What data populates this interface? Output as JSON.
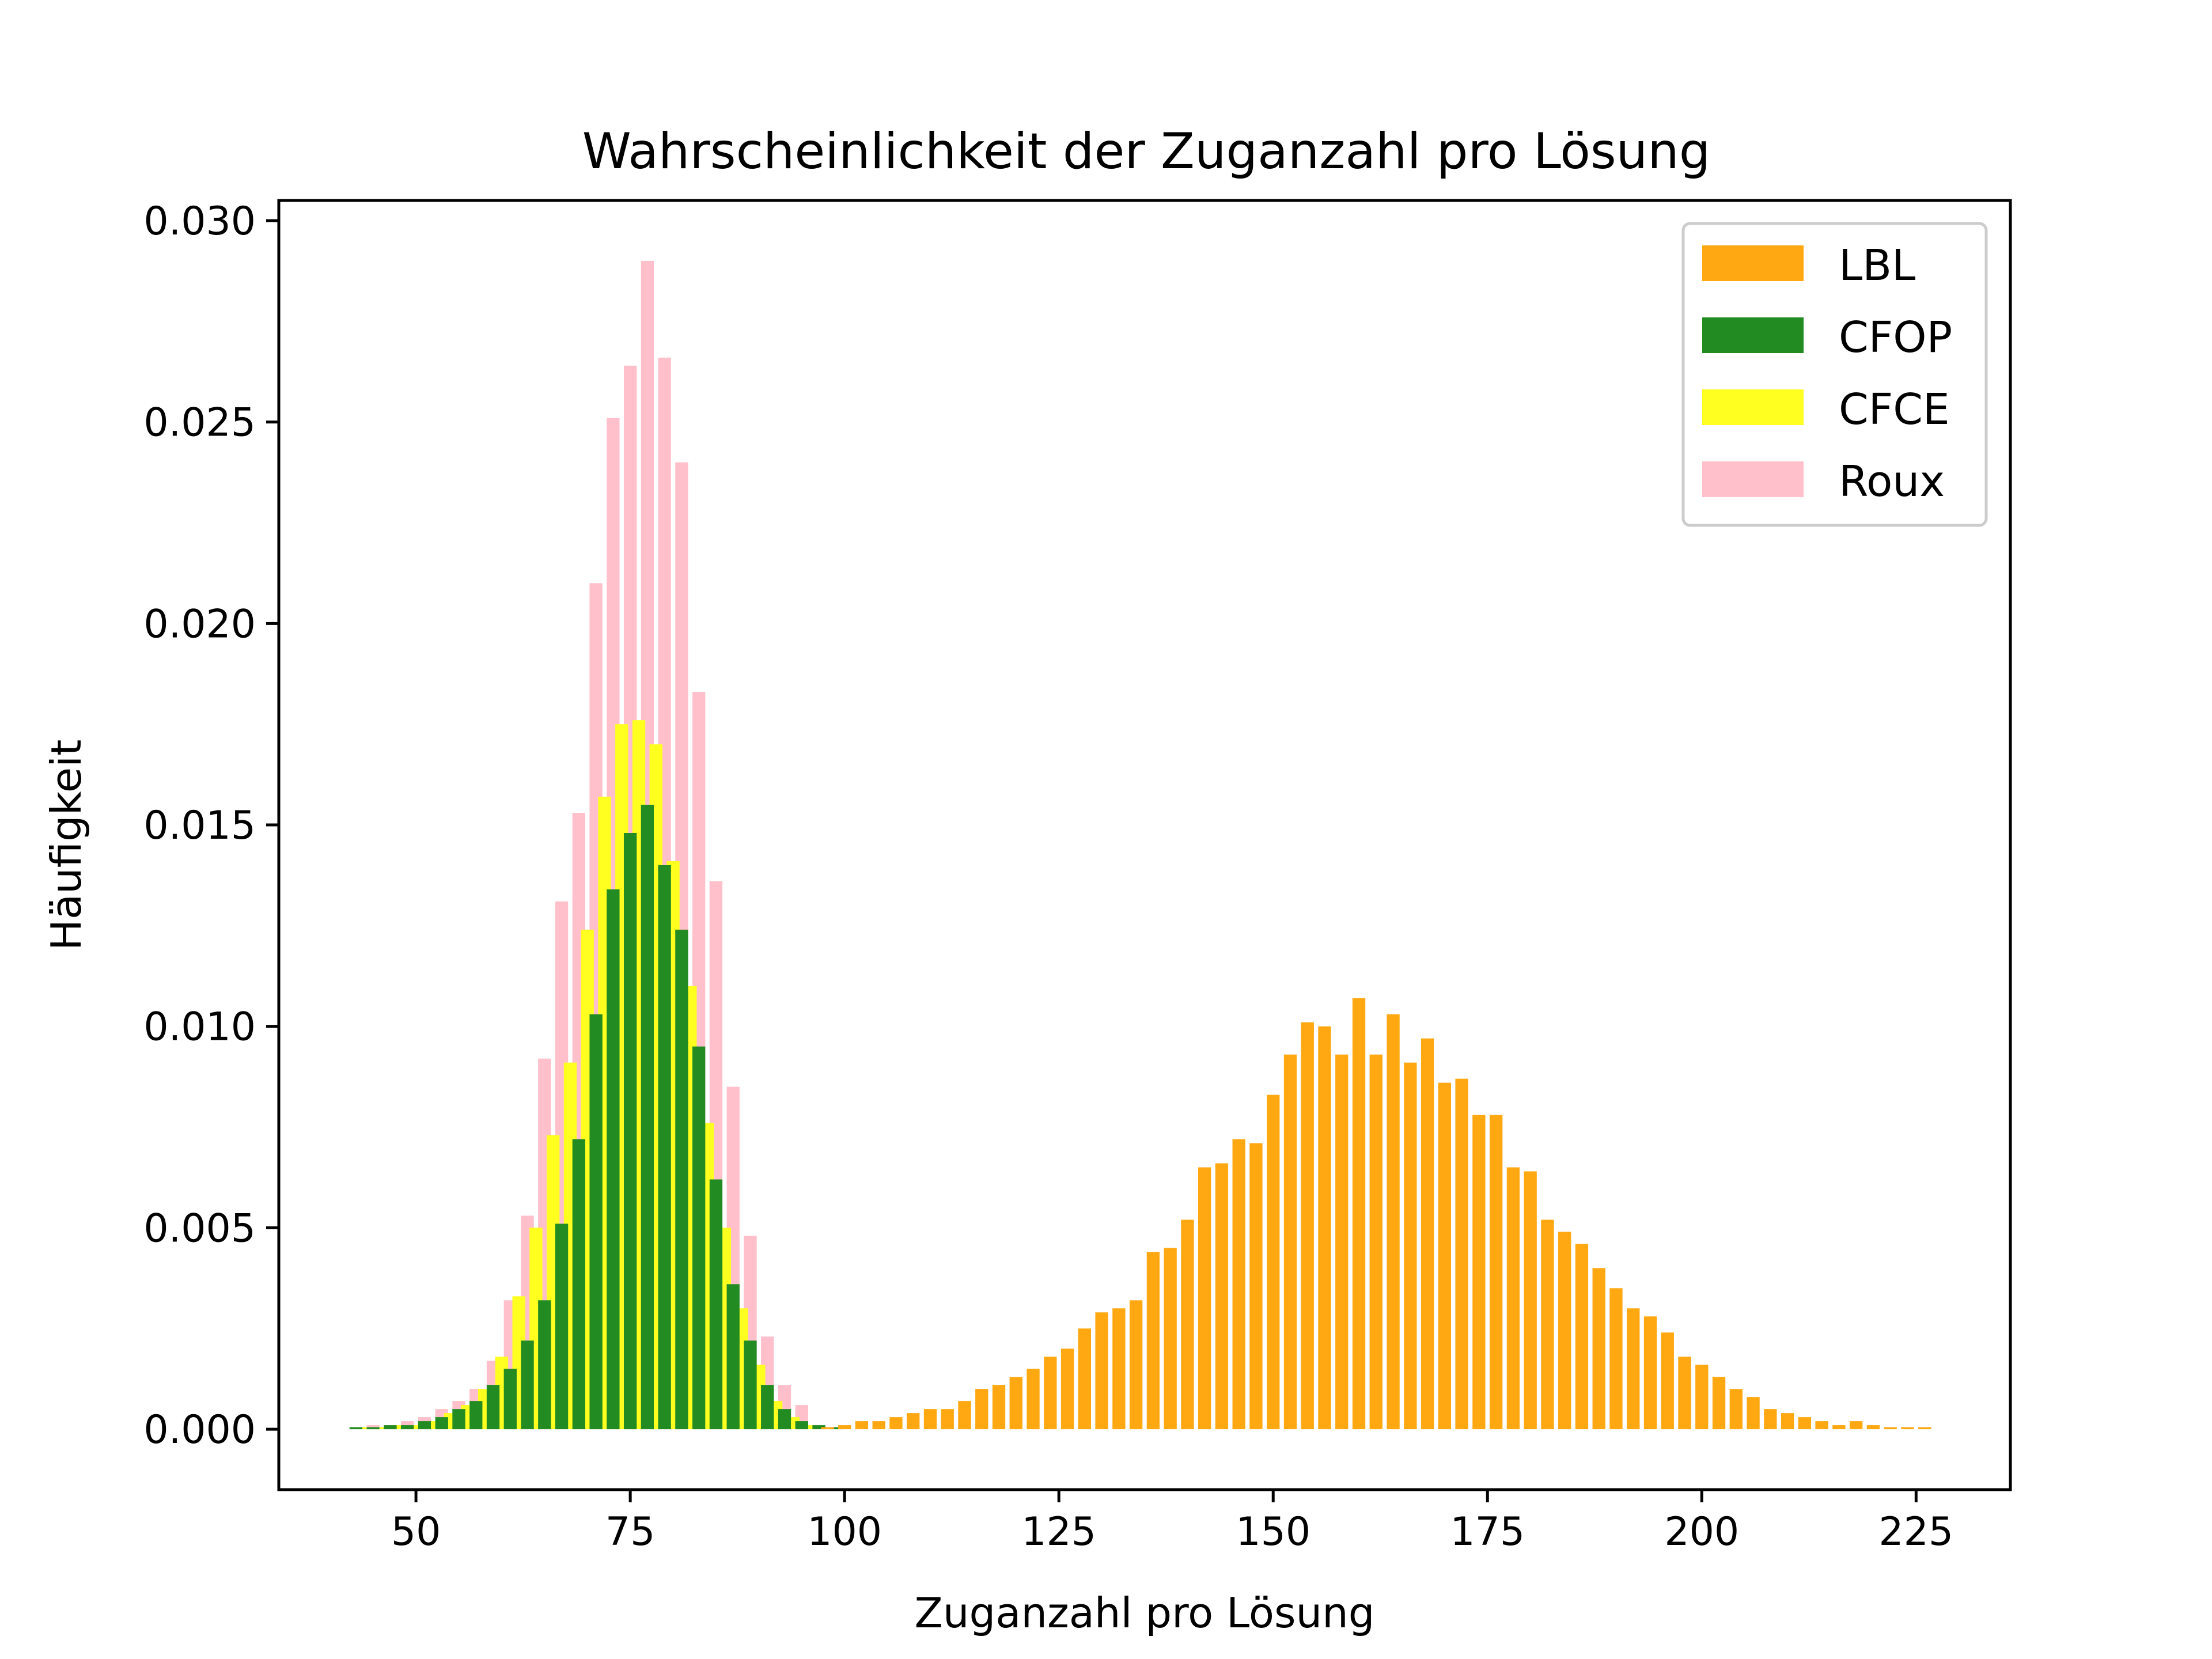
{
  "chart_data": {
    "type": "bar",
    "title": "Wahrscheinlichkeit der Zuganzahl pro Lösung",
    "xlabel": "Zuganzahl pro Lösung",
    "ylabel": "Häufigkeit",
    "xlim": [
      34,
      236
    ],
    "ylim": [
      -0.0015,
      0.0305
    ],
    "xticks": [
      50,
      75,
      100,
      125,
      150,
      175,
      200,
      225
    ],
    "yticks": [
      0.0,
      0.005,
      0.01,
      0.015,
      0.02,
      0.025,
      0.03
    ],
    "ytick_labels": [
      "0.000",
      "0.005",
      "0.010",
      "0.015",
      "0.020",
      "0.025",
      "0.030"
    ],
    "grid": false,
    "legend": "top-right",
    "series": [
      {
        "name": "Roux",
        "color": "#ffc0cb",
        "x": [
          45,
          47,
          49,
          51,
          53,
          55,
          57,
          59,
          61,
          63,
          65,
          67,
          69,
          71,
          73,
          75,
          77,
          79,
          81,
          83,
          85,
          87,
          89,
          91,
          93,
          95
        ],
        "values": [
          0.0001,
          0.0001,
          0.0002,
          0.0003,
          0.0005,
          0.0007,
          0.001,
          0.0017,
          0.0032,
          0.0053,
          0.0092,
          0.0131,
          0.0153,
          0.021,
          0.0251,
          0.0264,
          0.029,
          0.0266,
          0.024,
          0.0183,
          0.0136,
          0.0085,
          0.0048,
          0.0023,
          0.0011,
          0.0006
        ]
      },
      {
        "name": "CFCE",
        "color": "#ffff20",
        "x": [
          44,
          46,
          48,
          50,
          52,
          54,
          56,
          58,
          60,
          62,
          64,
          66,
          68,
          70,
          72,
          74,
          76,
          78,
          80,
          82,
          84,
          86,
          88,
          90,
          92,
          94,
          96
        ],
        "values": [
          5e-05,
          5e-05,
          0.0001,
          0.0001,
          0.0002,
          0.0004,
          0.0006,
          0.001,
          0.0018,
          0.0033,
          0.005,
          0.0073,
          0.0091,
          0.0124,
          0.0157,
          0.0175,
          0.0176,
          0.017,
          0.0141,
          0.011,
          0.0076,
          0.005,
          0.003,
          0.0016,
          0.0007,
          0.0003,
          0.0001
        ]
      },
      {
        "name": "CFOP",
        "color": "#228b22",
        "x": [
          43,
          45,
          47,
          49,
          51,
          53,
          55,
          57,
          59,
          61,
          63,
          65,
          67,
          69,
          71,
          73,
          75,
          77,
          79,
          81,
          83,
          85,
          87,
          89,
          91,
          93,
          95,
          97,
          99
        ],
        "values": [
          5e-05,
          5e-05,
          0.0001,
          0.0001,
          0.0002,
          0.0003,
          0.0005,
          0.0007,
          0.0011,
          0.0015,
          0.0022,
          0.0032,
          0.0051,
          0.0072,
          0.0103,
          0.0134,
          0.0148,
          0.0155,
          0.014,
          0.0124,
          0.0095,
          0.0062,
          0.0036,
          0.0022,
          0.0011,
          0.0005,
          0.0002,
          0.0001,
          5e-05
        ]
      },
      {
        "name": "LBL",
        "color": "#ffa812",
        "x": [
          98,
          100,
          102,
          104,
          106,
          108,
          110,
          112,
          114,
          116,
          118,
          120,
          122,
          124,
          126,
          128,
          130,
          132,
          134,
          136,
          138,
          140,
          142,
          144,
          146,
          148,
          150,
          152,
          154,
          156,
          158,
          160,
          162,
          164,
          166,
          168,
          170,
          172,
          174,
          176,
          178,
          180,
          182,
          184,
          186,
          188,
          190,
          192,
          194,
          196,
          198,
          200,
          202,
          204,
          206,
          208,
          210,
          212,
          214,
          216,
          218,
          220,
          222,
          224,
          226
        ],
        "values": [
          5e-05,
          0.0001,
          0.0002,
          0.0002,
          0.0003,
          0.0004,
          0.0005,
          0.0005,
          0.0007,
          0.001,
          0.0011,
          0.0013,
          0.0015,
          0.0018,
          0.002,
          0.0025,
          0.0029,
          0.003,
          0.0032,
          0.0044,
          0.0045,
          0.0052,
          0.0065,
          0.0066,
          0.0072,
          0.0071,
          0.0083,
          0.0093,
          0.0101,
          0.01,
          0.0093,
          0.0107,
          0.0093,
          0.0103,
          0.0091,
          0.0097,
          0.0086,
          0.0087,
          0.0078,
          0.0078,
          0.0065,
          0.0064,
          0.0052,
          0.0049,
          0.0046,
          0.004,
          0.0035,
          0.003,
          0.0028,
          0.0024,
          0.0018,
          0.0016,
          0.0013,
          0.001,
          0.0008,
          0.0005,
          0.0004,
          0.0003,
          0.0002,
          0.0001,
          0.0002,
          0.0001,
          5e-05,
          5e-05,
          5e-05
        ]
      }
    ]
  }
}
